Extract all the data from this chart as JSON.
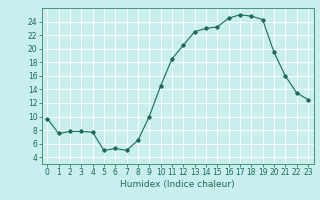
{
  "x": [
    0,
    1,
    2,
    3,
    4,
    5,
    6,
    7,
    8,
    9,
    10,
    11,
    12,
    13,
    14,
    15,
    16,
    17,
    18,
    19,
    20,
    21,
    22,
    23
  ],
  "y": [
    9.7,
    7.5,
    7.8,
    7.8,
    7.7,
    5.0,
    5.3,
    5.0,
    6.5,
    10.0,
    14.5,
    18.5,
    20.5,
    22.5,
    23.0,
    23.2,
    24.5,
    25.0,
    24.8,
    24.3,
    19.5,
    16.0,
    13.5,
    12.5
  ],
  "line_color": "#1a6b5a",
  "bg_color": "#c8eeee",
  "grid_color": "#ffffff",
  "xlabel": "Humidex (Indice chaleur)",
  "xlim": [
    -0.5,
    23.5
  ],
  "ylim": [
    3,
    26
  ],
  "yticks": [
    4,
    6,
    8,
    10,
    12,
    14,
    16,
    18,
    20,
    22,
    24
  ],
  "xticks": [
    0,
    1,
    2,
    3,
    4,
    5,
    6,
    7,
    8,
    9,
    10,
    11,
    12,
    13,
    14,
    15,
    16,
    17,
    18,
    19,
    20,
    21,
    22,
    23
  ],
  "tick_fontsize": 5.5,
  "label_fontsize": 6.5,
  "marker": "D",
  "marker_size": 1.8,
  "linewidth": 0.8
}
